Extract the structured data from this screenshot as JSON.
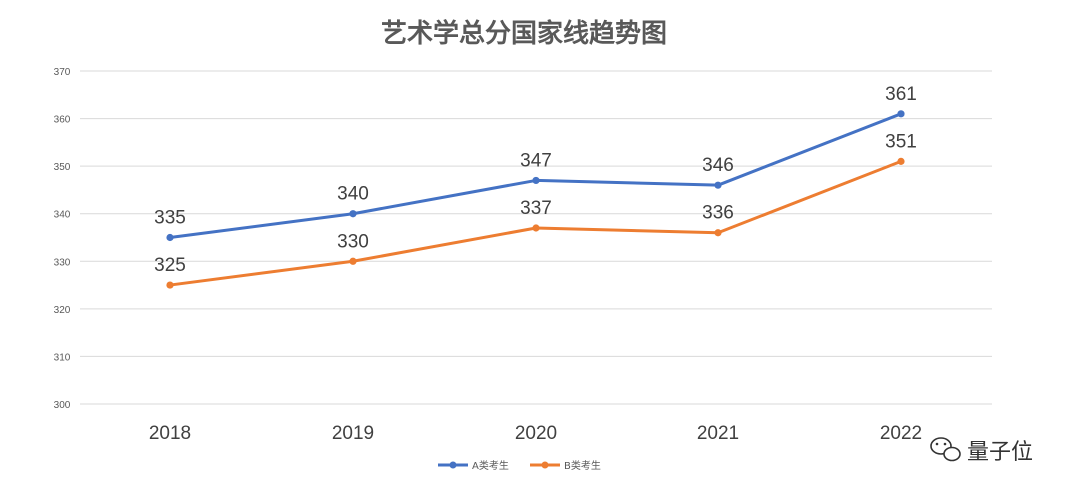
{
  "chart_data": {
    "type": "line",
    "title": "艺术学总分国家线趋势图",
    "categories": [
      "2018",
      "2019",
      "2020",
      "2021",
      "2022"
    ],
    "ylim": [
      300,
      370
    ],
    "yticks": [
      300,
      310,
      320,
      330,
      340,
      350,
      360,
      370
    ],
    "grid": true,
    "legend_position": "bottom",
    "series": [
      {
        "name": "A类考生",
        "values": [
          335,
          340,
          347,
          346,
          361
        ],
        "color": "#4472C4"
      },
      {
        "name": "B类考生",
        "values": [
          325,
          330,
          337,
          336,
          351
        ],
        "color": "#ED7D31"
      }
    ]
  },
  "watermark": {
    "text": "量子位",
    "icon": "wechat-icon"
  }
}
